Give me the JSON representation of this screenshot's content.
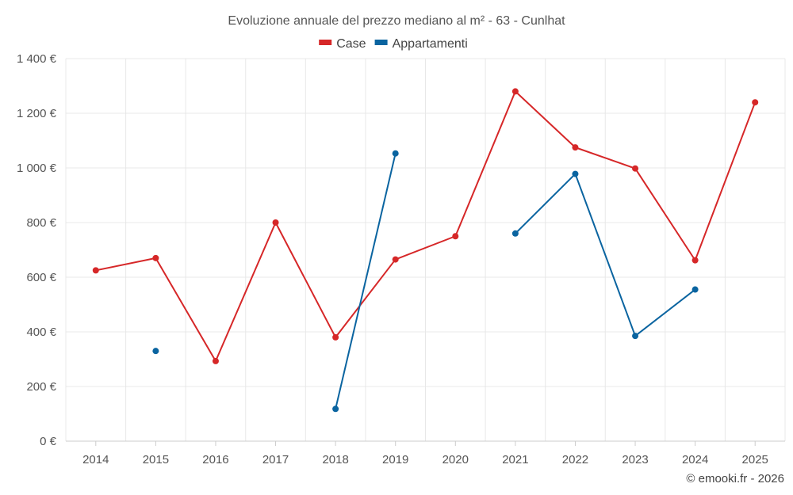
{
  "credit": "© emooki.fr - 2026",
  "chart_data": {
    "type": "line",
    "title": "Evoluzione annuale del prezzo mediano al m² - 63 - Cunlhat",
    "xlabel": "",
    "ylabel": "",
    "categories": [
      "2014",
      "2015",
      "2016",
      "2017",
      "2018",
      "2019",
      "2020",
      "2021",
      "2022",
      "2023",
      "2024",
      "2025"
    ],
    "ylim": [
      0,
      1400
    ],
    "yticks": [
      0,
      200,
      400,
      600,
      800,
      1000,
      1200,
      1400
    ],
    "ytick_labels": [
      "0 €",
      "200 €",
      "400 €",
      "600 €",
      "800 €",
      "1 000 €",
      "1 200 €",
      "1 400 €"
    ],
    "grid": true,
    "legend_position": "top-center",
    "series": [
      {
        "name": "Case",
        "color": "#d62728",
        "values": [
          625,
          670,
          293,
          800,
          380,
          665,
          750,
          1280,
          1075,
          998,
          662,
          1240
        ]
      },
      {
        "name": "Appartamenti",
        "color": "#0a64a0",
        "values": [
          null,
          330,
          null,
          null,
          118,
          1053,
          null,
          760,
          978,
          385,
          555,
          null
        ]
      }
    ]
  }
}
